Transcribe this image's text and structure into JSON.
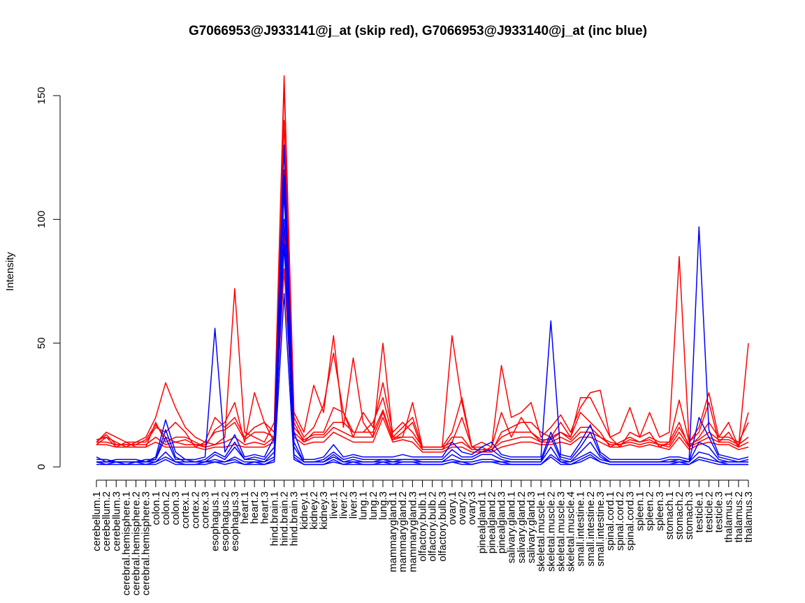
{
  "chart_data": {
    "type": "line",
    "title": "G7066953@J933141@j_at (skip red), G7066953@J933140@j_at (inc blue)",
    "xlabel": "",
    "ylabel": "Intensity",
    "ylim": [
      0,
      158
    ],
    "yticks": [
      0,
      50,
      100,
      150
    ],
    "grid": false,
    "legend": "none",
    "categories": [
      "cerebellum.1",
      "cerebellum.2",
      "cerebellum.3",
      "cerebral.hemisphere.1",
      "cerebral.hemisphere.2",
      "cerebral.hemisphere.3",
      "colon.1",
      "colon.2",
      "colon.3",
      "cortex.1",
      "cortex.2",
      "cortex.3",
      "esophagus.1",
      "esophagus.2",
      "esophagus.3",
      "heart.1",
      "heart.2",
      "heart.3",
      "hind.brain.1",
      "hind.brain.2",
      "hind.brain.3",
      "kidney.1",
      "kidney.2",
      "kidney.3",
      "liver.1",
      "liver.2",
      "liver.3",
      "lung.1",
      "lung.2",
      "lung.3",
      "mammarygland.1",
      "mammarygland.2",
      "mammarygland.3",
      "olfactory.bulb.1",
      "olfactory.bulb.2",
      "olfactory.bulb.3",
      "ovary.1",
      "ovary.2",
      "ovary.3",
      "pinealgland.1",
      "pinealgland.2",
      "pinealgland.3",
      "salivary.gland.1",
      "salivary.gland.2",
      "salivary.gland.3",
      "skeletal.muscle.1",
      "skeletal.muscle.2",
      "skeletal.muscle.3",
      "skeletal.muscle.4",
      "small.intestine.1",
      "small.intestine.2",
      "small.intestine.3",
      "spinal.cord.1",
      "spinal.cord.2",
      "spinal.cord.3",
      "spleen.1",
      "spleen.2",
      "spleen.3",
      "stomach.1",
      "stomach.2",
      "stomach.3",
      "testicle.1",
      "testicle.2",
      "testicle.3",
      "thalamus.1",
      "thalamus.2",
      "thalamus.3"
    ],
    "series": [
      {
        "color": "#ff0000",
        "values": [
          10,
          14,
          12,
          10,
          10,
          12,
          20,
          34,
          24,
          16,
          12,
          10,
          9,
          12,
          72,
          14,
          12,
          10,
          18,
          158,
          22,
          14,
          33,
          22,
          53,
          16,
          44,
          18,
          12,
          50,
          12,
          12,
          26,
          8,
          8,
          8,
          53,
          26,
          8,
          10,
          8,
          41,
          20,
          22,
          26,
          12,
          16,
          21,
          14,
          24,
          30,
          31,
          12,
          14,
          24,
          12,
          22,
          12,
          14,
          85,
          10,
          16,
          30,
          12,
          18,
          8,
          50
        ]
      },
      {
        "color": "#ff0000",
        "values": [
          11,
          12,
          8,
          10,
          8,
          8,
          18,
          10,
          12,
          12,
          10,
          8,
          15,
          18,
          26,
          10,
          30,
          18,
          10,
          155,
          20,
          12,
          16,
          25,
          46,
          22,
          12,
          22,
          16,
          34,
          14,
          18,
          14,
          8,
          8,
          8,
          14,
          28,
          8,
          6,
          8,
          22,
          12,
          20,
          14,
          10,
          12,
          14,
          12,
          28,
          28,
          20,
          12,
          8,
          14,
          12,
          14,
          8,
          10,
          27,
          10,
          14,
          26,
          10,
          14,
          8,
          22
        ]
      },
      {
        "color": "#ff0000",
        "values": [
          9,
          12,
          10,
          8,
          10,
          10,
          16,
          14,
          18,
          14,
          8,
          10,
          20,
          16,
          20,
          12,
          16,
          18,
          14,
          140,
          18,
          10,
          14,
          14,
          24,
          22,
          14,
          14,
          18,
          28,
          12,
          16,
          20,
          8,
          8,
          8,
          10,
          20,
          8,
          8,
          6,
          14,
          16,
          18,
          18,
          14,
          12,
          18,
          12,
          22,
          18,
          14,
          8,
          10,
          12,
          10,
          12,
          10,
          10,
          18,
          8,
          12,
          18,
          12,
          12,
          10,
          18
        ]
      },
      {
        "color": "#ff0000",
        "values": [
          10,
          13,
          9,
          9,
          9,
          11,
          17,
          12,
          10,
          11,
          9,
          9,
          14,
          15,
          18,
          11,
          14,
          14,
          12,
          120,
          16,
          11,
          13,
          13,
          18,
          18,
          14,
          14,
          14,
          23,
          11,
          14,
          18,
          7,
          7,
          7,
          12,
          12,
          7,
          7,
          7,
          12,
          14,
          14,
          14,
          11,
          11,
          14,
          11,
          16,
          16,
          12,
          10,
          9,
          11,
          10,
          11,
          9,
          9,
          16,
          9,
          11,
          14,
          11,
          11,
          9,
          12
        ]
      },
      {
        "color": "#ff0000",
        "values": [
          10,
          10,
          9,
          9,
          9,
          9,
          12,
          9,
          10,
          9,
          9,
          8,
          9,
          10,
          12,
          9,
          10,
          9,
          12,
          95,
          14,
          10,
          12,
          12,
          16,
          14,
          12,
          12,
          12,
          22,
          11,
          12,
          12,
          7,
          7,
          7,
          9,
          10,
          7,
          7,
          7,
          10,
          11,
          12,
          12,
          10,
          10,
          12,
          10,
          14,
          14,
          12,
          9,
          9,
          10,
          9,
          10,
          9,
          8,
          14,
          8,
          10,
          12,
          10,
          10,
          8,
          10
        ]
      },
      {
        "color": "#ff0000",
        "values": [
          9,
          9,
          8,
          8,
          8,
          8,
          10,
          8,
          8,
          8,
          8,
          7,
          8,
          8,
          9,
          8,
          8,
          8,
          10,
          80,
          12,
          9,
          10,
          10,
          14,
          12,
          10,
          10,
          10,
          20,
          10,
          11,
          10,
          6,
          6,
          6,
          8,
          8,
          6,
          6,
          6,
          8,
          9,
          10,
          10,
          9,
          9,
          10,
          9,
          12,
          12,
          10,
          8,
          8,
          9,
          8,
          9,
          8,
          7,
          12,
          7,
          9,
          10,
          9,
          9,
          7,
          8
        ]
      },
      {
        "color": "#0000ff",
        "values": [
          4,
          2,
          3,
          3,
          3,
          2,
          4,
          19,
          6,
          3,
          3,
          4,
          56,
          6,
          13,
          4,
          5,
          4,
          12,
          130,
          14,
          3,
          3,
          4,
          9,
          4,
          5,
          4,
          4,
          4,
          4,
          5,
          4,
          4,
          4,
          4,
          10,
          6,
          5,
          8,
          10,
          5,
          4,
          4,
          4,
          4,
          59,
          5,
          4,
          10,
          17,
          6,
          3,
          3,
          3,
          3,
          3,
          3,
          4,
          4,
          3,
          97,
          15,
          5,
          4,
          3,
          4
        ]
      },
      {
        "color": "#0000ff",
        "values": [
          2,
          2,
          2,
          2,
          2,
          2,
          3,
          15,
          4,
          2,
          2,
          3,
          6,
          4,
          10,
          3,
          4,
          3,
          8,
          118,
          10,
          2,
          2,
          3,
          6,
          3,
          4,
          3,
          3,
          3,
          3,
          3,
          3,
          3,
          3,
          3,
          7,
          4,
          4,
          6,
          7,
          4,
          3,
          3,
          3,
          3,
          14,
          4,
          3,
          8,
          14,
          5,
          2,
          2,
          2,
          2,
          2,
          2,
          3,
          3,
          2,
          20,
          12,
          4,
          3,
          2,
          3
        ]
      },
      {
        "color": "#0000ff",
        "values": [
          3,
          3,
          2,
          2,
          2,
          3,
          3,
          12,
          3,
          3,
          2,
          2,
          5,
          3,
          8,
          3,
          3,
          2,
          6,
          112,
          8,
          2,
          2,
          2,
          5,
          2,
          3,
          2,
          2,
          3,
          2,
          3,
          3,
          2,
          2,
          2,
          5,
          3,
          3,
          5,
          5,
          3,
          2,
          2,
          2,
          2,
          12,
          3,
          2,
          6,
          10,
          4,
          2,
          2,
          2,
          2,
          2,
          2,
          2,
          3,
          2,
          10,
          8,
          3,
          2,
          2,
          2
        ]
      },
      {
        "color": "#0000ff",
        "values": [
          2,
          2,
          2,
          2,
          2,
          2,
          2,
          6,
          2,
          2,
          2,
          2,
          3,
          2,
          4,
          2,
          2,
          2,
          4,
          100,
          5,
          2,
          2,
          2,
          4,
          2,
          2,
          2,
          2,
          2,
          2,
          2,
          2,
          2,
          2,
          2,
          3,
          2,
          2,
          3,
          3,
          2,
          2,
          2,
          2,
          2,
          8,
          2,
          2,
          4,
          6,
          3,
          2,
          2,
          2,
          2,
          2,
          2,
          2,
          2,
          2,
          6,
          5,
          2,
          2,
          2,
          2
        ]
      },
      {
        "color": "#0000ff",
        "values": [
          2,
          1,
          2,
          1,
          2,
          1,
          2,
          4,
          2,
          1,
          1,
          2,
          2,
          2,
          3,
          1,
          2,
          1,
          3,
          90,
          4,
          1,
          1,
          1,
          3,
          1,
          2,
          1,
          1,
          2,
          1,
          2,
          2,
          1,
          1,
          1,
          2,
          2,
          1,
          2,
          2,
          2,
          1,
          1,
          1,
          1,
          5,
          2,
          1,
          3,
          5,
          2,
          1,
          1,
          1,
          1,
          1,
          1,
          1,
          2,
          1,
          4,
          3,
          2,
          1,
          1,
          1
        ]
      },
      {
        "color": "#0000ff",
        "values": [
          1,
          1,
          1,
          1,
          1,
          1,
          1,
          3,
          1,
          1,
          1,
          1,
          2,
          1,
          2,
          1,
          1,
          1,
          2,
          70,
          3,
          1,
          1,
          1,
          2,
          1,
          1,
          1,
          1,
          1,
          1,
          1,
          1,
          1,
          1,
          1,
          2,
          1,
          1,
          2,
          2,
          1,
          1,
          1,
          1,
          1,
          4,
          1,
          1,
          2,
          4,
          2,
          1,
          1,
          1,
          1,
          1,
          1,
          1,
          1,
          1,
          3,
          2,
          1,
          1,
          1,
          1
        ]
      }
    ]
  }
}
